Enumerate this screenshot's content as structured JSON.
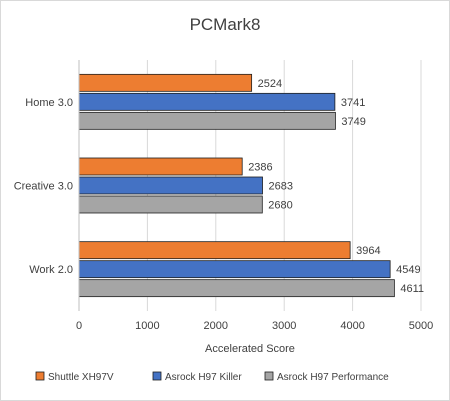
{
  "chart_data": {
    "type": "bar",
    "orientation": "horizontal",
    "title": "PCMark8",
    "xlabel": "Accelerated Score",
    "ylabel": "",
    "categories": [
      "Home 3.0",
      "Creative 3.0",
      "Work 2.0"
    ],
    "series": [
      {
        "name": "Shuttle XH97V",
        "color": "#ED7D31",
        "values": [
          2524,
          2386,
          3964
        ]
      },
      {
        "name": "Asrock H97 Killer",
        "color": "#4472C4",
        "values": [
          3741,
          2683,
          4549
        ]
      },
      {
        "name": "Asrock H97 Performance",
        "color": "#A5A5A5",
        "values": [
          3749,
          2680,
          4611
        ]
      }
    ],
    "xlim": [
      0,
      5000
    ],
    "xticks": [
      0,
      1000,
      2000,
      3000,
      4000,
      5000
    ],
    "grid": true,
    "legend_position": "bottom"
  }
}
